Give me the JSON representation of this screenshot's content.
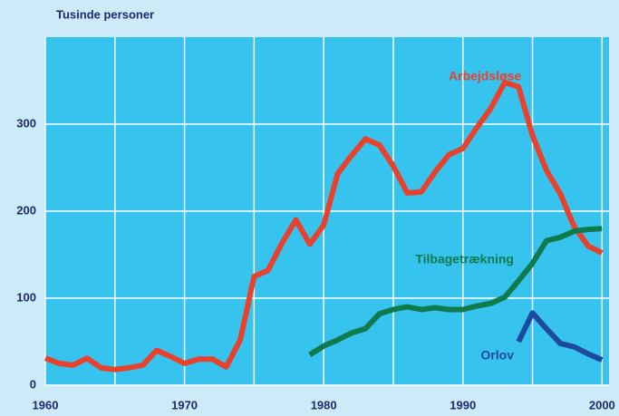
{
  "chart_data": {
    "type": "line",
    "title": "Tusinde personer",
    "x": [
      1960,
      1961,
      1962,
      1963,
      1964,
      1965,
      1966,
      1967,
      1968,
      1969,
      1970,
      1971,
      1972,
      1973,
      1974,
      1975,
      1976,
      1977,
      1978,
      1979,
      1980,
      1981,
      1982,
      1983,
      1984,
      1985,
      1986,
      1987,
      1988,
      1989,
      1990,
      1991,
      1992,
      1993,
      1994,
      1995,
      1996,
      1997,
      1998,
      1999,
      2000
    ],
    "series": [
      {
        "name": "Arbejdsløse",
        "color": "#e8412c",
        "values": [
          31,
          25,
          23,
          31,
          20,
          18,
          20,
          23,
          40,
          33,
          25,
          30,
          30,
          21,
          52,
          125,
          132,
          163,
          190,
          162,
          184,
          243,
          264,
          283,
          276,
          252,
          221,
          222,
          245,
          265,
          272,
          296,
          318,
          348,
          343,
          287,
          247,
          220,
          182,
          160,
          152
        ]
      },
      {
        "name": "Tilbagetrækning",
        "color": "#0f7a4c",
        "values": [
          null,
          null,
          null,
          null,
          null,
          null,
          null,
          null,
          null,
          null,
          null,
          null,
          null,
          null,
          null,
          null,
          null,
          null,
          null,
          35,
          45,
          52,
          60,
          65,
          82,
          87,
          90,
          87,
          89,
          87,
          87,
          91,
          94,
          101,
          120,
          140,
          166,
          170,
          177,
          179,
          180
        ]
      },
      {
        "name": "Orlov",
        "color": "#1b4a9e",
        "values": [
          null,
          null,
          null,
          null,
          null,
          null,
          null,
          null,
          null,
          null,
          null,
          null,
          null,
          null,
          null,
          null,
          null,
          null,
          null,
          null,
          null,
          null,
          null,
          null,
          null,
          null,
          null,
          null,
          null,
          null,
          null,
          null,
          null,
          null,
          50,
          83,
          65,
          48,
          44,
          36,
          29
        ]
      }
    ],
    "xlim": [
      1960,
      2000.5
    ],
    "xticks": [
      1960,
      1970,
      1980,
      1990,
      2000
    ],
    "xminor": [
      1965,
      1975,
      1985,
      1995
    ],
    "ylim": [
      0,
      400
    ],
    "yticks": [
      0,
      100,
      200,
      300
    ],
    "grid": true
  }
}
